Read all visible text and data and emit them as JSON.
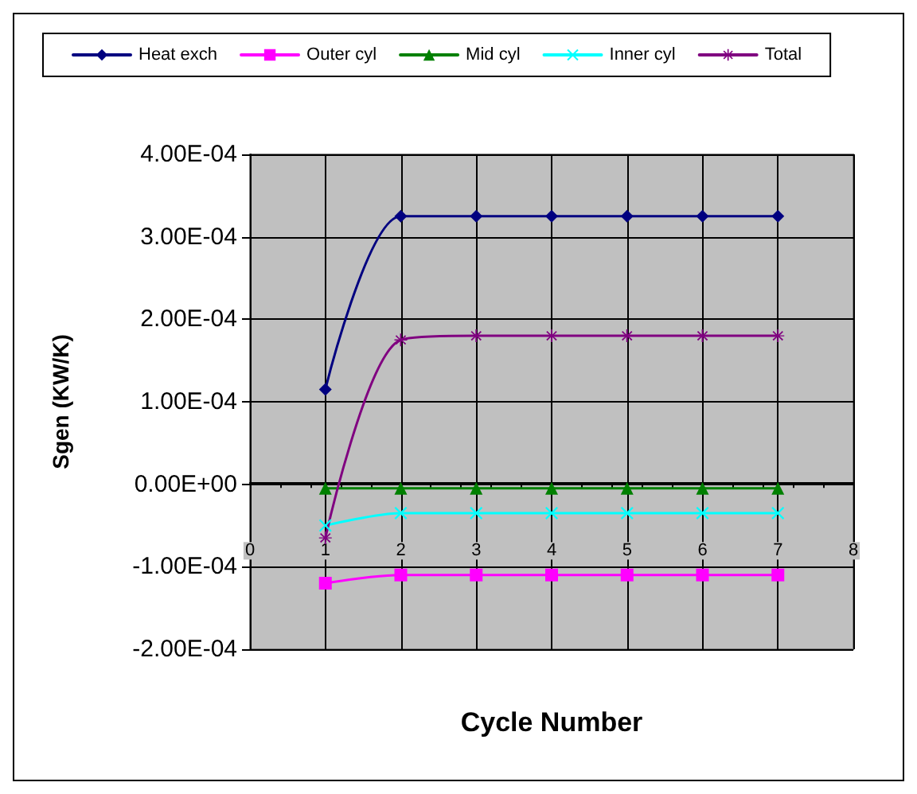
{
  "chart_data": {
    "type": "line",
    "xlabel": "Cycle Number",
    "ylabel": "Sgen (KW/K)",
    "x": [
      1,
      2,
      3,
      4,
      5,
      6,
      7
    ],
    "xlim": [
      0,
      8
    ],
    "xticks": [
      0,
      1,
      2,
      3,
      4,
      5,
      6,
      7,
      8
    ],
    "ylim": [
      -0.0002,
      0.0004
    ],
    "yticks": [
      {
        "value": -0.0002,
        "label": "-2.00E-04"
      },
      {
        "value": -0.0001,
        "label": "-1.00E-04"
      },
      {
        "value": 0,
        "label": "0.00E+00"
      },
      {
        "value": 0.0001,
        "label": "1.00E-04"
      },
      {
        "value": 0.0002,
        "label": "2.00E-04"
      },
      {
        "value": 0.0003,
        "label": "3.00E-04"
      },
      {
        "value": 0.0004,
        "label": "4.00E-04"
      }
    ],
    "grid": true,
    "legend": "top",
    "series": [
      {
        "name": "Heat exch",
        "color": "#000080",
        "marker": "diamond",
        "values": [
          0.000115,
          0.000325,
          0.000325,
          0.000325,
          0.000325,
          0.000325,
          0.000325
        ]
      },
      {
        "name": "Outer cyl",
        "color": "#ff00ff",
        "marker": "square",
        "values": [
          -0.00012,
          -0.00011,
          -0.00011,
          -0.00011,
          -0.00011,
          -0.00011,
          -0.00011
        ]
      },
      {
        "name": "Mid cyl",
        "color": "#008000",
        "marker": "triangle",
        "values": [
          -5e-06,
          -5e-06,
          -5e-06,
          -5e-06,
          -5e-06,
          -5e-06,
          -5e-06
        ]
      },
      {
        "name": "Inner cyl",
        "color": "#00ffff",
        "marker": "cross",
        "values": [
          -5e-05,
          -3.5e-05,
          -3.5e-05,
          -3.5e-05,
          -3.5e-05,
          -3.5e-05,
          -3.5e-05
        ]
      },
      {
        "name": "Total",
        "color": "#800080",
        "marker": "star",
        "values": [
          -6.5e-05,
          0.000175,
          0.00018,
          0.00018,
          0.00018,
          0.00018,
          0.00018
        ]
      }
    ]
  }
}
